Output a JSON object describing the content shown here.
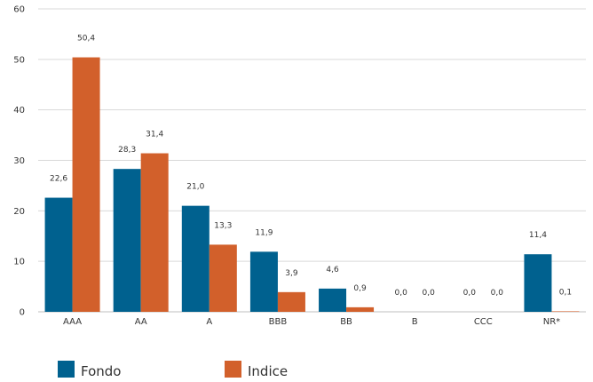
{
  "chart_data": {
    "type": "bar",
    "categories": [
      "AAA",
      "AA",
      "A",
      "BBB",
      "BB",
      "B",
      "CCC",
      "NR*"
    ],
    "series": [
      {
        "name": "Fondo",
        "values": [
          22.6,
          28.3,
          21.0,
          11.9,
          4.6,
          0.0,
          0.0,
          11.4
        ]
      },
      {
        "name": "Indice",
        "values": [
          50.4,
          31.4,
          13.3,
          3.9,
          0.9,
          0.0,
          0.0,
          0.1
        ]
      }
    ],
    "data_labels": [
      [
        "22,6",
        "28,3",
        "21,0",
        "11,9",
        "4,6",
        "0,0",
        "0,0",
        "11,4"
      ],
      [
        "50,4",
        "31,4",
        "13,3",
        "3,9",
        "0,9",
        "0,0",
        "0,0",
        "0,1"
      ]
    ],
    "y_ticks": [
      "0",
      "10",
      "20",
      "30",
      "40",
      "50",
      "60"
    ],
    "ylim": [
      0,
      60
    ],
    "grid": true,
    "legend_position": "bottom-left",
    "colors": [
      "#00618f",
      "#d2602b"
    ],
    "title": "",
    "xlabel": "",
    "ylabel": ""
  }
}
